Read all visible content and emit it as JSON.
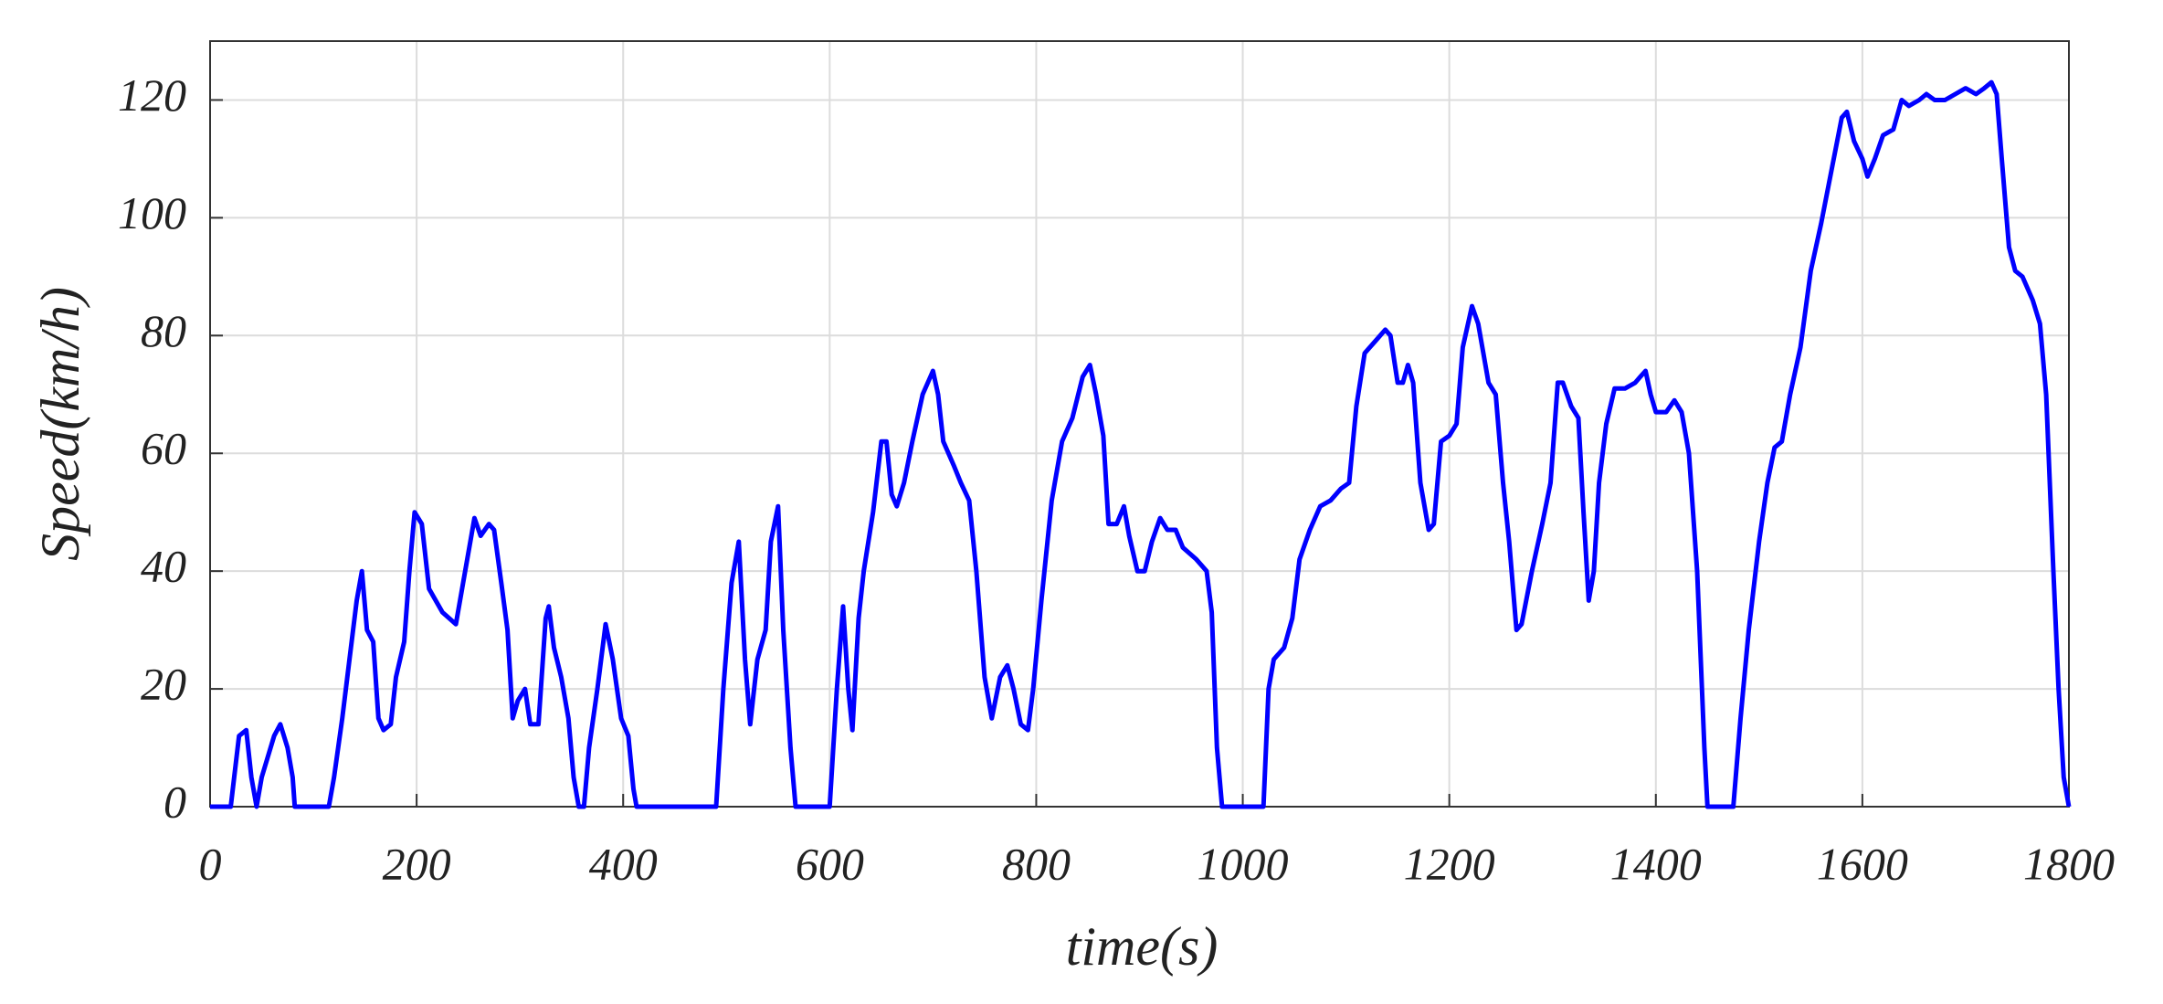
{
  "chart_data": {
    "type": "line",
    "xlabel": "time(s)",
    "ylabel": "Speed(km/h)",
    "x": [
      0,
      20,
      28,
      35,
      40,
      45,
      50,
      62,
      68,
      75,
      80,
      82,
      115,
      120,
      128,
      135,
      142,
      147,
      152,
      158,
      163,
      168,
      175,
      180,
      188,
      193,
      198,
      205,
      212,
      225,
      238,
      245,
      252,
      256,
      262,
      270,
      275,
      282,
      288,
      293,
      298,
      305,
      310,
      318,
      325,
      328,
      333,
      340,
      347,
      352,
      357,
      362,
      367,
      375,
      383,
      390,
      398,
      405,
      410,
      413,
      490,
      497,
      505,
      512,
      518,
      523,
      530,
      538,
      543,
      550,
      555,
      562,
      567,
      600,
      607,
      613,
      618,
      622,
      628,
      633,
      642,
      650,
      655,
      660,
      665,
      672,
      680,
      690,
      700,
      705,
      710,
      720,
      727,
      735,
      742,
      750,
      757,
      765,
      772,
      778,
      785,
      792,
      797,
      805,
      815,
      825,
      835,
      845,
      852,
      858,
      865,
      870,
      878,
      885,
      890,
      898,
      905,
      912,
      920,
      927,
      935,
      942,
      955,
      965,
      970,
      975,
      980,
      1020,
      1025,
      1030,
      1040,
      1048,
      1055,
      1065,
      1075,
      1085,
      1095,
      1103,
      1110,
      1118,
      1128,
      1138,
      1143,
      1150,
      1155,
      1160,
      1165,
      1172,
      1180,
      1185,
      1192,
      1200,
      1207,
      1213,
      1222,
      1228,
      1238,
      1245,
      1252,
      1258,
      1265,
      1270,
      1280,
      1290,
      1298,
      1305,
      1310,
      1318,
      1325,
      1330,
      1335,
      1340,
      1345,
      1352,
      1360,
      1370,
      1380,
      1385,
      1390,
      1395,
      1400,
      1410,
      1418,
      1425,
      1432,
      1440,
      1447,
      1450,
      1475,
      1482,
      1490,
      1500,
      1508,
      1515,
      1522,
      1530,
      1540,
      1550,
      1560,
      1570,
      1580,
      1585,
      1592,
      1600,
      1605,
      1612,
      1620,
      1630,
      1638,
      1645,
      1655,
      1662,
      1670,
      1680,
      1690,
      1700,
      1710,
      1718,
      1725,
      1730,
      1735,
      1742,
      1748,
      1755,
      1765,
      1772,
      1778,
      1785,
      1790,
      1795,
      1800
    ],
    "series": [
      {
        "color": "#0000ff",
        "values": [
          0,
          0,
          12,
          13,
          5,
          0,
          5,
          12,
          14,
          10,
          5,
          0,
          0,
          5,
          15,
          25,
          35,
          40,
          30,
          28,
          15,
          13,
          14,
          22,
          28,
          40,
          50,
          48,
          37,
          33,
          31,
          38,
          45,
          49,
          46,
          48,
          47,
          38,
          30,
          15,
          18,
          20,
          14,
          14,
          32,
          34,
          27,
          22,
          15,
          5,
          0,
          0,
          10,
          20,
          31,
          25,
          15,
          12,
          3,
          0,
          0,
          20,
          38,
          45,
          25,
          14,
          25,
          30,
          45,
          51,
          30,
          10,
          0,
          0,
          20,
          34,
          20,
          13,
          32,
          40,
          50,
          62,
          62,
          53,
          51,
          55,
          62,
          70,
          74,
          70,
          62,
          58,
          55,
          52,
          40,
          22,
          15,
          22,
          24,
          20,
          14,
          13,
          20,
          35,
          52,
          62,
          66,
          73,
          75,
          70,
          63,
          48,
          48,
          51,
          46,
          40,
          40,
          45,
          49,
          47,
          47,
          44,
          42,
          40,
          33,
          10,
          0,
          0,
          20,
          25,
          27,
          32,
          42,
          47,
          51,
          52,
          54,
          55,
          68,
          77,
          79,
          81,
          80,
          72,
          72,
          75,
          72,
          55,
          47,
          48,
          62,
          63,
          65,
          78,
          85,
          82,
          72,
          70,
          55,
          45,
          30,
          31,
          40,
          48,
          55,
          72,
          72,
          68,
          66,
          50,
          35,
          40,
          55,
          65,
          71,
          71,
          72,
          73,
          74,
          70,
          67,
          67,
          69,
          67,
          60,
          40,
          10,
          0,
          0,
          15,
          30,
          45,
          55,
          61,
          62,
          70,
          78,
          91,
          99,
          108,
          117,
          118,
          113,
          110,
          107,
          110,
          114,
          115,
          120,
          119,
          120,
          121,
          120,
          120,
          121,
          122,
          121,
          122,
          123,
          121,
          110,
          95,
          91,
          90,
          86,
          82,
          70,
          40,
          20,
          5,
          0
        ]
      }
    ],
    "xlim": [
      0,
      1800
    ],
    "ylim": [
      0,
      130
    ],
    "xticks": [
      0,
      200,
      400,
      600,
      800,
      1000,
      1200,
      1400,
      1600,
      1800
    ],
    "yticks": [
      0,
      20,
      40,
      60,
      80,
      100,
      120
    ],
    "grid": true
  }
}
